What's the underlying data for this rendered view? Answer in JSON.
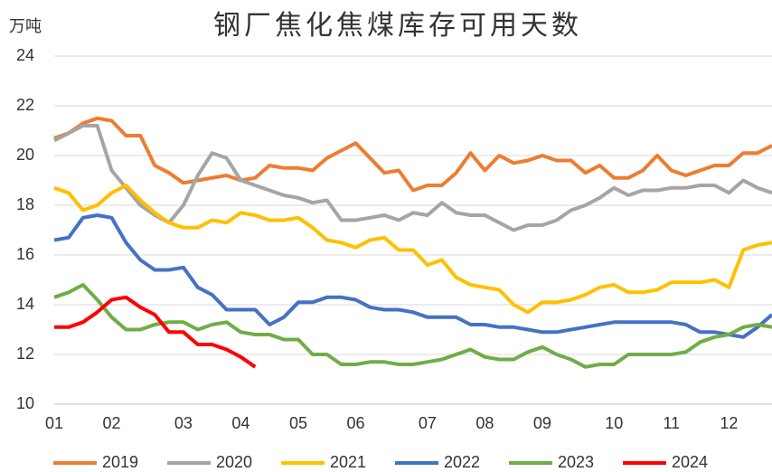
{
  "chart_data": {
    "type": "line",
    "title": "钢厂焦化焦煤库存可用天数",
    "y_label": "万吨",
    "categories": [
      "01",
      null,
      null,
      null,
      "02",
      null,
      null,
      null,
      null,
      "03",
      null,
      null,
      null,
      "04",
      null,
      null,
      null,
      "05",
      null,
      null,
      null,
      "06",
      null,
      null,
      null,
      null,
      "07",
      null,
      null,
      null,
      "08",
      null,
      null,
      null,
      "09",
      null,
      null,
      null,
      null,
      "10",
      null,
      null,
      null,
      "11",
      null,
      null,
      null,
      "12",
      null,
      null,
      null
    ],
    "ylim": [
      10,
      24
    ],
    "yticks": [
      10,
      12,
      14,
      16,
      18,
      20,
      22,
      24
    ],
    "grid": true,
    "series": [
      {
        "name": "2019",
        "color": "#ED7D31",
        "values": [
          20.7,
          20.9,
          21.3,
          21.5,
          21.4,
          20.8,
          20.8,
          19.6,
          19.3,
          18.9,
          19.0,
          19.1,
          19.2,
          19.0,
          19.1,
          19.6,
          19.5,
          19.5,
          19.4,
          19.9,
          20.2,
          20.5,
          19.9,
          19.3,
          19.4,
          18.6,
          18.8,
          18.8,
          19.3,
          20.1,
          19.4,
          20.0,
          19.7,
          19.8,
          20.0,
          19.8,
          19.8,
          19.3,
          19.6,
          19.1,
          19.1,
          19.4,
          20.0,
          19.4,
          19.2,
          19.4,
          19.6,
          19.6,
          20.1,
          20.1,
          20.4
        ]
      },
      {
        "name": "2020",
        "color": "#A5A5A5",
        "values": [
          20.6,
          20.9,
          21.2,
          21.2,
          19.4,
          18.7,
          18.0,
          17.6,
          17.3,
          18.0,
          19.2,
          20.1,
          19.9,
          19.0,
          18.8,
          18.6,
          18.4,
          18.3,
          18.1,
          18.2,
          17.4,
          17.4,
          17.5,
          17.6,
          17.4,
          17.7,
          17.6,
          18.1,
          17.7,
          17.6,
          17.6,
          17.3,
          17.0,
          17.2,
          17.2,
          17.4,
          17.8,
          18.0,
          18.3,
          18.7,
          18.4,
          18.6,
          18.6,
          18.7,
          18.7,
          18.8,
          18.8,
          18.5,
          19.0,
          18.7,
          18.5
        ]
      },
      {
        "name": "2021",
        "color": "#FFC000",
        "values": [
          18.7,
          18.5,
          17.8,
          18.0,
          18.5,
          18.8,
          18.2,
          17.7,
          17.3,
          17.1,
          17.1,
          17.4,
          17.3,
          17.7,
          17.6,
          17.4,
          17.4,
          17.5,
          17.1,
          16.6,
          16.5,
          16.3,
          16.6,
          16.7,
          16.2,
          16.2,
          15.6,
          15.8,
          15.1,
          14.8,
          14.7,
          14.6,
          14.0,
          13.7,
          14.1,
          14.1,
          14.2,
          14.4,
          14.7,
          14.8,
          14.5,
          14.5,
          14.6,
          14.9,
          14.9,
          14.9,
          15.0,
          14.7,
          16.2,
          16.4,
          16.5
        ]
      },
      {
        "name": "2022",
        "color": "#4472C4",
        "values": [
          16.6,
          16.7,
          17.5,
          17.6,
          17.5,
          16.5,
          15.8,
          15.4,
          15.4,
          15.5,
          14.7,
          14.4,
          13.8,
          13.8,
          13.8,
          13.2,
          13.5,
          14.1,
          14.1,
          14.3,
          14.3,
          14.2,
          13.9,
          13.8,
          13.8,
          13.7,
          13.5,
          13.5,
          13.5,
          13.2,
          13.2,
          13.1,
          13.1,
          13.0,
          12.9,
          12.9,
          13.0,
          13.1,
          13.2,
          13.3,
          13.3,
          13.3,
          13.3,
          13.3,
          13.2,
          12.9,
          12.9,
          12.8,
          12.7,
          13.1,
          13.6
        ]
      },
      {
        "name": "2023",
        "color": "#70AD47",
        "values": [
          14.3,
          14.5,
          14.8,
          14.2,
          13.5,
          13.0,
          13.0,
          13.2,
          13.3,
          13.3,
          13.0,
          13.2,
          13.3,
          12.9,
          12.8,
          12.8,
          12.6,
          12.6,
          12.0,
          12.0,
          11.6,
          11.6,
          11.7,
          11.7,
          11.6,
          11.6,
          11.7,
          11.8,
          12.0,
          12.2,
          11.9,
          11.8,
          11.8,
          12.1,
          12.3,
          12.0,
          11.8,
          11.5,
          11.6,
          11.6,
          12.0,
          12.0,
          12.0,
          12.0,
          12.1,
          12.5,
          12.7,
          12.8,
          13.1,
          13.2,
          13.1
        ]
      },
      {
        "name": "2024",
        "color": "#FF0000",
        "values": [
          13.1,
          13.1,
          13.3,
          13.7,
          14.2,
          14.3,
          13.9,
          13.6,
          12.9,
          12.9,
          12.4,
          12.4,
          12.2,
          11.9,
          11.5,
          null,
          null,
          null,
          null,
          null,
          null,
          null,
          null,
          null,
          null,
          null,
          null,
          null,
          null,
          null,
          null,
          null,
          null,
          null,
          null,
          null,
          null,
          null,
          null,
          null,
          null,
          null,
          null,
          null,
          null,
          null,
          null,
          null,
          null,
          null,
          null
        ]
      }
    ]
  }
}
